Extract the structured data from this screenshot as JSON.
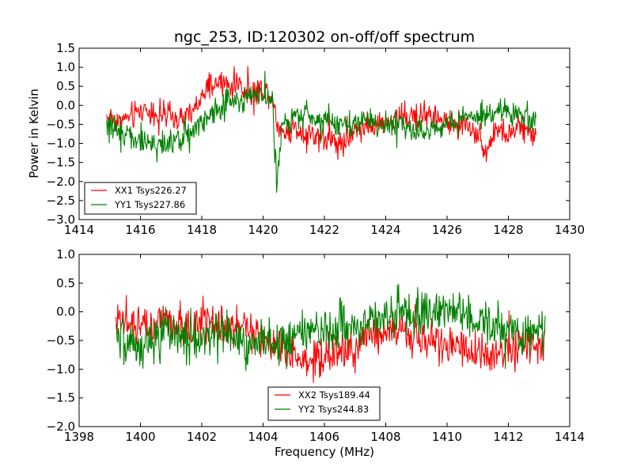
{
  "chart_data": [
    {
      "type": "line",
      "title": "ngc_253, ID:120302 on-off/off spectrum",
      "xlabel": "",
      "ylabel": "Power in Kelvin",
      "xlim": [
        1414,
        1430
      ],
      "ylim": [
        -3.0,
        1.5
      ],
      "xticks": [
        1414,
        1416,
        1418,
        1420,
        1422,
        1424,
        1426,
        1428,
        1430
      ],
      "xtick_labels": [
        "1414",
        "1416",
        "1418",
        "1420",
        "1422",
        "1424",
        "1426",
        "1428",
        "1430"
      ],
      "yticks": [
        -3.0,
        -2.5,
        -2.0,
        -1.5,
        -1.0,
        -0.5,
        0.0,
        0.5,
        1.0,
        1.5
      ],
      "ytick_labels": [
        "−3.0",
        "−2.5",
        "−2.0",
        "−1.5",
        "−1.0",
        "−0.5",
        "0.0",
        "0.5",
        "1.0",
        "1.5"
      ],
      "grid": false,
      "legend_position": "lower-left",
      "series": [
        {
          "name": "XX1 Tsys226.27",
          "color": "#ff0000",
          "x": [
            1414.9,
            1415.3,
            1415.7,
            1416.1,
            1416.5,
            1416.9,
            1417.3,
            1417.7,
            1418.0,
            1418.3,
            1418.6,
            1418.9,
            1419.2,
            1419.5,
            1419.8,
            1420.1,
            1420.3,
            1420.5,
            1420.7,
            1421.0,
            1421.4,
            1421.8,
            1422.2,
            1422.6,
            1423.0,
            1423.4,
            1423.8,
            1424.2,
            1424.6,
            1425.0,
            1425.4,
            1425.8,
            1426.2,
            1426.6,
            1427.0,
            1427.3,
            1427.6,
            1428.0,
            1428.4,
            1428.9
          ],
          "y": [
            -0.3,
            -0.4,
            -0.3,
            -0.1,
            -0.2,
            -0.3,
            -0.4,
            -0.2,
            0.2,
            0.5,
            0.6,
            0.5,
            0.6,
            0.3,
            0.4,
            0.4,
            0.2,
            -0.6,
            -0.7,
            -0.6,
            -0.7,
            -0.8,
            -0.9,
            -1.0,
            -0.6,
            -0.5,
            -0.6,
            -0.4,
            -0.3,
            -0.3,
            -0.2,
            -0.4,
            -0.6,
            -0.5,
            -0.7,
            -1.2,
            -0.6,
            -0.8,
            -0.6,
            -0.8
          ],
          "noise": 0.22
        },
        {
          "name": "YY1 Tsys227.86",
          "color": "#008000",
          "x": [
            1414.9,
            1415.3,
            1415.7,
            1416.1,
            1416.5,
            1416.9,
            1417.3,
            1417.7,
            1418.0,
            1418.3,
            1418.6,
            1418.9,
            1419.2,
            1419.5,
            1419.8,
            1420.1,
            1420.3,
            1420.45,
            1420.6,
            1420.9,
            1421.3,
            1421.7,
            1422.1,
            1422.5,
            1422.9,
            1423.3,
            1423.7,
            1424.1,
            1424.5,
            1424.9,
            1425.3,
            1425.7,
            1426.1,
            1426.5,
            1426.9,
            1427.3,
            1427.7,
            1428.1,
            1428.5,
            1428.9
          ],
          "y": [
            -0.5,
            -0.7,
            -0.8,
            -0.9,
            -1.1,
            -1.0,
            -0.9,
            -0.6,
            -0.4,
            -0.2,
            0.0,
            0.1,
            0.1,
            0.2,
            0.3,
            0.3,
            0.1,
            -2.2,
            -0.5,
            -0.3,
            -0.2,
            -0.4,
            -0.4,
            -0.5,
            -0.5,
            -0.4,
            -0.5,
            -0.6,
            -0.5,
            -0.6,
            -0.7,
            -0.6,
            -0.4,
            -0.3,
            -0.3,
            -0.2,
            -0.1,
            -0.2,
            -0.3,
            -0.4
          ],
          "noise": 0.22
        }
      ]
    },
    {
      "type": "line",
      "title": "",
      "xlabel": "Frequency (MHz)",
      "ylabel": "",
      "xlim": [
        1398,
        1414
      ],
      "ylim": [
        -2.0,
        1.0
      ],
      "xticks": [
        1398,
        1400,
        1402,
        1404,
        1406,
        1408,
        1410,
        1412,
        1414
      ],
      "xtick_labels": [
        "1398",
        "1400",
        "1402",
        "1404",
        "1406",
        "1408",
        "1410",
        "1412",
        "1414"
      ],
      "yticks": [
        -2.0,
        -1.5,
        -1.0,
        -0.5,
        0.0,
        0.5,
        1.0
      ],
      "ytick_labels": [
        "−2.0",
        "−1.5",
        "−1.0",
        "−0.5",
        "0.0",
        "0.5",
        "1.0"
      ],
      "grid": false,
      "legend_position": "lower-center",
      "series": [
        {
          "name": "XX2 Tsys189.44",
          "color": "#ff0000",
          "x": [
            1399.2,
            1399.6,
            1400.0,
            1400.4,
            1400.8,
            1401.2,
            1401.6,
            1402.0,
            1402.4,
            1402.8,
            1403.2,
            1403.6,
            1404.0,
            1404.4,
            1404.8,
            1405.2,
            1405.6,
            1406.0,
            1406.4,
            1406.8,
            1407.2,
            1407.6,
            1408.0,
            1408.4,
            1408.8,
            1409.2,
            1409.6,
            1410.0,
            1410.4,
            1410.8,
            1411.2,
            1411.6,
            1412.0,
            1412.4,
            1412.8,
            1413.2
          ],
          "y": [
            0.0,
            -0.2,
            -0.3,
            -0.2,
            -0.1,
            -0.2,
            -0.3,
            -0.1,
            -0.2,
            -0.3,
            -0.2,
            -0.4,
            -0.5,
            -0.6,
            -0.7,
            -0.8,
            -0.9,
            -0.8,
            -0.7,
            -0.6,
            -0.5,
            -0.4,
            -0.3,
            -0.3,
            -0.4,
            -0.5,
            -0.5,
            -0.6,
            -0.6,
            -0.7,
            -0.7,
            -0.8,
            -0.7,
            -0.6,
            -0.5,
            -0.6
          ],
          "noise": 0.22
        },
        {
          "name": "YY2 Tsys244.83",
          "color": "#008000",
          "x": [
            1399.2,
            1399.6,
            1400.0,
            1400.4,
            1400.8,
            1401.2,
            1401.6,
            1402.0,
            1402.4,
            1402.8,
            1403.2,
            1403.6,
            1404.0,
            1404.4,
            1404.8,
            1405.2,
            1405.6,
            1406.0,
            1406.4,
            1406.8,
            1407.2,
            1407.6,
            1408.0,
            1408.4,
            1408.8,
            1409.2,
            1409.6,
            1410.0,
            1410.4,
            1410.8,
            1411.2,
            1411.6,
            1412.0,
            1412.4,
            1412.8,
            1413.2
          ],
          "y": [
            -0.6,
            -0.5,
            -0.6,
            -0.5,
            -0.4,
            -0.5,
            -0.4,
            -0.5,
            -0.4,
            -0.3,
            -0.5,
            -0.6,
            -0.5,
            -0.6,
            -0.5,
            -0.4,
            -0.3,
            -0.3,
            -0.2,
            -0.2,
            -0.3,
            -0.1,
            -0.1,
            0.0,
            -0.1,
            0.0,
            0.0,
            0.1,
            0.0,
            -0.1,
            -0.2,
            -0.3,
            -0.4,
            -0.4,
            -0.3,
            -0.4
          ],
          "noise": 0.25
        }
      ]
    }
  ]
}
